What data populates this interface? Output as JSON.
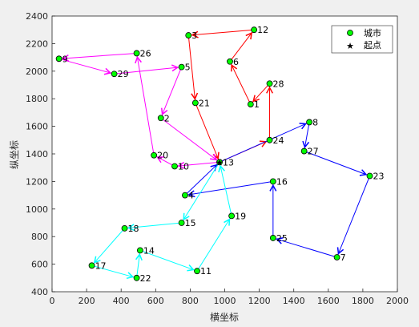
{
  "chart_data": {
    "type": "scatter",
    "xlabel": "横坐标",
    "ylabel": "纵坐标",
    "xlim": [
      0,
      2000
    ],
    "ylim": [
      400,
      2400
    ],
    "xticks": [
      0,
      200,
      400,
      600,
      800,
      1000,
      1200,
      1400,
      1600,
      1800,
      2000
    ],
    "yticks": [
      400,
      600,
      800,
      1000,
      1200,
      1400,
      1600,
      1800,
      2000,
      2200,
      2400
    ],
    "grid": false,
    "legend": {
      "placement": "top-right",
      "entries": [
        {
          "label": "城市",
          "marker": "circle",
          "color": "#00ff00"
        },
        {
          "label": "起点",
          "marker": "star",
          "color": "#000000"
        }
      ]
    },
    "cities": [
      {
        "id": "1",
        "x": 1150,
        "y": 1760
      },
      {
        "id": "3",
        "x": 790,
        "y": 2260
      },
      {
        "id": "5",
        "x": 750,
        "y": 2030
      },
      {
        "id": "6",
        "x": 1030,
        "y": 2070
      },
      {
        "id": "7",
        "x": 1650,
        "y": 650
      },
      {
        "id": "8",
        "x": 1490,
        "y": 1630
      },
      {
        "id": "11",
        "x": 840,
        "y": 550
      },
      {
        "id": "12",
        "x": 1170,
        "y": 2300
      },
      {
        "id": "13",
        "x": 970,
        "y": 1340
      },
      {
        "id": "14",
        "x": 510,
        "y": 700
      },
      {
        "id": "15",
        "x": 750,
        "y": 900
      },
      {
        "id": "16",
        "x": 1280,
        "y": 1200
      },
      {
        "id": "17",
        "x": 230,
        "y": 590
      },
      {
        "id": "18",
        "x": 420,
        "y": 860
      },
      {
        "id": "19",
        "x": 1040,
        "y": 950
      },
      {
        "id": "20",
        "x": 590,
        "y": 1390
      },
      {
        "id": "21",
        "x": 830,
        "y": 1770
      },
      {
        "id": "22",
        "x": 490,
        "y": 500
      },
      {
        "id": "23",
        "x": 1840,
        "y": 1240
      },
      {
        "id": "24",
        "x": 1260,
        "y": 1500
      },
      {
        "id": "25",
        "x": 1280,
        "y": 790
      },
      {
        "id": "26",
        "x": 490,
        "y": 2130
      },
      {
        "id": "27",
        "x": 1460,
        "y": 1420
      },
      {
        "id": "28",
        "x": 1260,
        "y": 1910
      },
      {
        "id": "29",
        "x": 360,
        "y": 1980
      },
      {
        "id": "2",
        "x": 630,
        "y": 1660
      },
      {
        "id": "10",
        "x": 710,
        "y": 1310
      },
      {
        "id": "4",
        "x": 770,
        "y": 1100
      },
      {
        "id": "9",
        "x": 40,
        "y": 2090
      }
    ],
    "start_point": {
      "x": 970,
      "y": 1340
    },
    "series": [
      {
        "color": "#ff0000",
        "path": [
          [
            970,
            1340
          ],
          [
            1260,
            1500
          ],
          [
            1260,
            1910
          ],
          [
            1150,
            1760
          ],
          [
            1030,
            2070
          ],
          [
            1170,
            2300
          ],
          [
            790,
            2260
          ],
          [
            830,
            1770
          ],
          [
            970,
            1340
          ]
        ]
      },
      {
        "color": "#ff00ff",
        "path": [
          [
            970,
            1340
          ],
          [
            710,
            1310
          ],
          [
            590,
            1390
          ],
          [
            490,
            2130
          ],
          [
            40,
            2090
          ],
          [
            360,
            1980
          ],
          [
            750,
            2030
          ],
          [
            630,
            1660
          ],
          [
            970,
            1340
          ]
        ]
      },
      {
        "color": "#0000ff",
        "path": [
          [
            970,
            1340
          ],
          [
            1490,
            1630
          ],
          [
            1460,
            1420
          ],
          [
            1840,
            1240
          ],
          [
            1650,
            650
          ],
          [
            1280,
            790
          ],
          [
            1280,
            1200
          ],
          [
            770,
            1100
          ],
          [
            970,
            1340
          ]
        ]
      },
      {
        "color": "#00ffff",
        "path": [
          [
            970,
            1340
          ],
          [
            750,
            900
          ],
          [
            420,
            860
          ],
          [
            230,
            590
          ],
          [
            490,
            500
          ],
          [
            510,
            700
          ],
          [
            840,
            550
          ],
          [
            1040,
            950
          ],
          [
            970,
            1340
          ]
        ]
      }
    ]
  }
}
